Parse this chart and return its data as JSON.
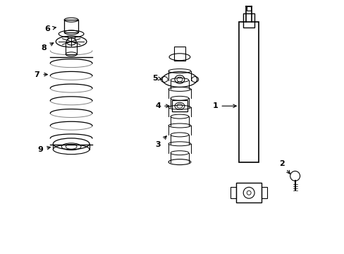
{
  "background_color": "#ffffff",
  "line_color": "#000000",
  "label_color": "#000000",
  "title": "",
  "fig_width": 4.89,
  "fig_height": 3.6,
  "dpi": 100,
  "parts": {
    "part1_label": "1",
    "part2_label": "2",
    "part3_label": "3",
    "part4_label": "4",
    "part5_label": "5",
    "part6_label": "6",
    "part7_label": "7",
    "part8_label": "8",
    "part9_label": "9"
  },
  "label_fontsize": 8,
  "arrow_color": "#000000"
}
